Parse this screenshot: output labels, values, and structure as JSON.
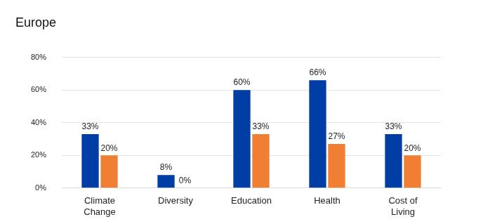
{
  "chart_data": {
    "type": "bar",
    "title": "Europe",
    "categories": [
      "Climate Change",
      "Diversity",
      "Education",
      "Health",
      "Cost of Living"
    ],
    "series": [
      {
        "color": "#003da5",
        "values": [
          33,
          8,
          60,
          66,
          33
        ],
        "value_labels": [
          "33%",
          "8%",
          "60%",
          "66%",
          "33%"
        ]
      },
      {
        "color": "#f07f33",
        "values": [
          20,
          0,
          33,
          27,
          20
        ],
        "value_labels": [
          "20%",
          "0%",
          "33%",
          "27%",
          "20%"
        ]
      }
    ],
    "ylim": [
      0,
      80
    ],
    "yticks": [
      {
        "value": 0,
        "label": "0%"
      },
      {
        "value": 20,
        "label": "20%"
      },
      {
        "value": 40,
        "label": "40%"
      },
      {
        "value": 60,
        "label": "60%"
      },
      {
        "value": 80,
        "label": "80%"
      }
    ],
    "grid": true,
    "data_labels": true
  }
}
